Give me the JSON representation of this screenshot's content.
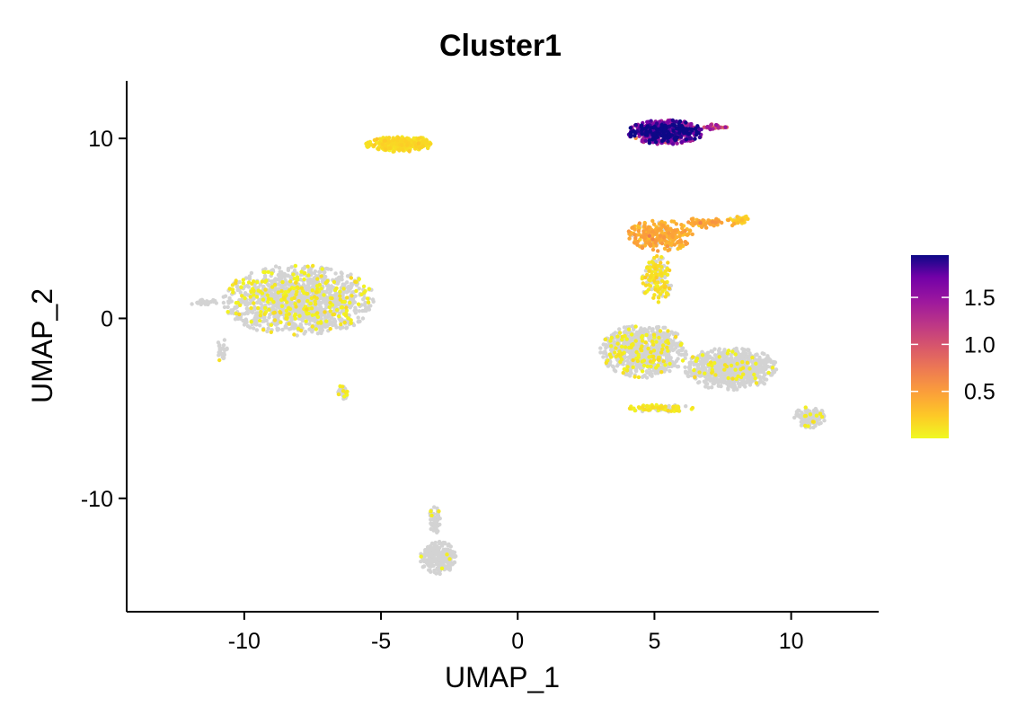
{
  "chart_data": {
    "type": "scatter",
    "title": "Cluster1",
    "xlabel": "UMAP_1",
    "ylabel": "UMAP_2",
    "xlim": [
      -14.3,
      13.2
    ],
    "ylim": [
      -16.3,
      13.2
    ],
    "x_ticks": [
      -10,
      -5,
      0,
      5,
      10
    ],
    "x_tick_labels": [
      "-10",
      "-5",
      "0",
      "5",
      "10"
    ],
    "y_ticks": [
      -10,
      0,
      10
    ],
    "y_tick_labels": [
      "-10",
      "0",
      "10"
    ],
    "grid": false,
    "color_scale": {
      "palette": "plasma (reversed)",
      "low_color": "#f0f921",
      "high_color": "#0d0887",
      "zero_color": "#d3d3d3",
      "range": [
        0,
        1.95
      ],
      "ticks": [
        0.5,
        1.0,
        1.5
      ],
      "tick_labels": [
        "0.5",
        "1.0",
        "1.5"
      ],
      "legend_position": "right"
    },
    "clusters": [
      {
        "cx": -4.3,
        "cy": 9.7,
        "rx": 1.3,
        "ry": 0.45,
        "n": 320,
        "expr_fraction": 1.0,
        "expr_mean": 0.12
      },
      {
        "cx": 5.4,
        "cy": 10.35,
        "rx": 1.4,
        "ry": 0.7,
        "n": 520,
        "expr_fraction": 1.0,
        "expr_mean": 1.65
      },
      {
        "cx": 7.2,
        "cy": 10.65,
        "rx": 0.45,
        "ry": 0.18,
        "n": 30,
        "expr_fraction": 1.0,
        "expr_mean": 1.1
      },
      {
        "cx": 5.2,
        "cy": 4.6,
        "rx": 1.2,
        "ry": 0.9,
        "n": 260,
        "expr_fraction": 0.95,
        "expr_mean": 0.4
      },
      {
        "cx": 6.9,
        "cy": 5.3,
        "rx": 1.1,
        "ry": 0.28,
        "n": 70,
        "expr_fraction": 0.9,
        "expr_mean": 0.4
      },
      {
        "cx": 8.1,
        "cy": 5.5,
        "rx": 0.35,
        "ry": 0.25,
        "n": 30,
        "expr_fraction": 0.9,
        "expr_mean": 0.2
      },
      {
        "cx": 5.1,
        "cy": 2.2,
        "rx": 0.6,
        "ry": 1.3,
        "n": 160,
        "expr_fraction": 0.5,
        "expr_mean": 0.12
      },
      {
        "cx": -8.0,
        "cy": 1.0,
        "rx": 2.8,
        "ry": 2.0,
        "n": 1400,
        "expr_fraction": 0.15,
        "expr_mean": 0.05
      },
      {
        "cx": -11.5,
        "cy": 0.9,
        "rx": 0.6,
        "ry": 0.15,
        "n": 30,
        "expr_fraction": 0.0,
        "expr_mean": 0.0
      },
      {
        "cx": -10.8,
        "cy": -1.8,
        "rx": 0.2,
        "ry": 0.7,
        "n": 30,
        "expr_fraction": 0.1,
        "expr_mean": 0.05
      },
      {
        "cx": -6.4,
        "cy": -4.1,
        "rx": 0.2,
        "ry": 0.55,
        "n": 30,
        "expr_fraction": 0.2,
        "expr_mean": 0.05
      },
      {
        "cx": 4.6,
        "cy": -1.8,
        "rx": 1.6,
        "ry": 1.5,
        "n": 800,
        "expr_fraction": 0.12,
        "expr_mean": 0.05
      },
      {
        "cx": 7.8,
        "cy": -2.8,
        "rx": 1.7,
        "ry": 1.2,
        "n": 800,
        "expr_fraction": 0.07,
        "expr_mean": 0.05
      },
      {
        "cx": 5.2,
        "cy": -5.0,
        "rx": 1.3,
        "ry": 0.2,
        "n": 90,
        "expr_fraction": 0.6,
        "expr_mean": 0.08
      },
      {
        "cx": 10.7,
        "cy": -5.5,
        "rx": 0.6,
        "ry": 0.6,
        "n": 140,
        "expr_fraction": 0.05,
        "expr_mean": 0.05
      },
      {
        "cx": -2.9,
        "cy": -13.3,
        "rx": 0.7,
        "ry": 0.9,
        "n": 230,
        "expr_fraction": 0.02,
        "expr_mean": 0.05
      },
      {
        "cx": -3.0,
        "cy": -11.2,
        "rx": 0.25,
        "ry": 0.8,
        "n": 50,
        "expr_fraction": 0.05,
        "expr_mean": 0.05
      }
    ]
  }
}
